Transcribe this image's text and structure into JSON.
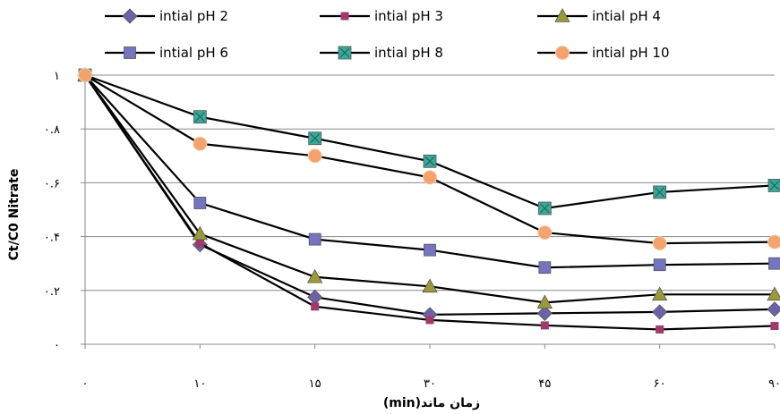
{
  "chart_data": {
    "type": "line",
    "title": "",
    "xlabel": "زمان ماند(min)",
    "ylabel": "Ct/C0 Nitrate",
    "x_categories": [
      "۰",
      "۱۰",
      "۱۵",
      "۳۰",
      "۴۵",
      "۶۰",
      "۹۰"
    ],
    "y_ticks": [
      "۰",
      "۰.۲",
      "۰.۴",
      "۰.۶",
      "۰.۸",
      "۱"
    ],
    "ylim": [
      0,
      1
    ],
    "grid": "horizontal",
    "legend_position": "top",
    "series": [
      {
        "name": "intial pH 2",
        "color": "#6b62a8",
        "marker": "diamond",
        "values": [
          1.0,
          0.37,
          0.175,
          0.11,
          0.115,
          0.12,
          0.13
        ]
      },
      {
        "name": "intial pH 3",
        "color": "#a03a6a",
        "marker": "square-small",
        "values": [
          1.0,
          0.375,
          0.14,
          0.09,
          0.07,
          0.055,
          0.068
        ]
      },
      {
        "name": "intial pH 4",
        "color": "#9a9a38",
        "marker": "triangle",
        "values": [
          1.0,
          0.41,
          0.25,
          0.215,
          0.155,
          0.185,
          0.185
        ]
      },
      {
        "name": "intial pH 6",
        "color": "#7474c0",
        "marker": "square",
        "values": [
          1.0,
          0.525,
          0.39,
          0.35,
          0.285,
          0.295,
          0.3
        ]
      },
      {
        "name": "intial pH 8",
        "color": "#3aa898",
        "marker": "x-square",
        "values": [
          1.0,
          0.845,
          0.765,
          0.68,
          0.505,
          0.565,
          0.59
        ]
      },
      {
        "name": "intial pH 10",
        "color": "#f4a26e",
        "marker": "circle",
        "values": [
          1.0,
          0.745,
          0.7,
          0.62,
          0.415,
          0.375,
          0.38
        ]
      }
    ]
  }
}
